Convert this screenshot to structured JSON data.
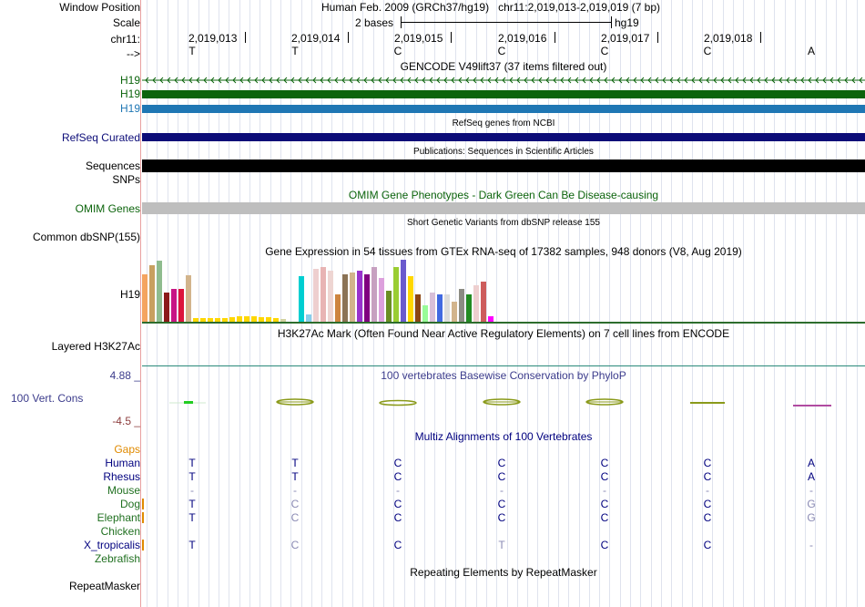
{
  "header": {
    "window_position_label": "Window Position",
    "scale_label": "Scale",
    "chrom_label": "chr11:",
    "strand_label": "-->",
    "assembly_text": "Human Feb. 2009 (GRCh37/hg19)   chr11:2,019,013-2,019,019 (7 bp)",
    "scale_text": "2 bases",
    "scale_db": "hg19"
  },
  "ruler": {
    "positions": [
      "2,019,013",
      "2,019,014",
      "2,019,015",
      "2,019,016",
      "2,019,017",
      "2,019,018"
    ],
    "bases": [
      "T",
      "T",
      "C",
      "C",
      "C",
      "C",
      "A"
    ]
  },
  "tracks": {
    "gencode": {
      "title": "GENCODE V49lift37 (37 items filtered out)",
      "rows": [
        "H19",
        "H19",
        "H19"
      ],
      "row_colors": [
        "#0c640c",
        "#0c640c",
        "#1f77b4"
      ]
    },
    "refseq": {
      "title": "RefSeq genes from NCBI",
      "label": "RefSeq Curated",
      "color": "#0c0c78"
    },
    "publications": {
      "title": "Publications: Sequences in Scientific Articles",
      "label": "Sequences"
    },
    "snps_label": "SNPs",
    "omim": {
      "title": "OMIM Gene Phenotypes - Dark Green Can Be Disease-causing",
      "label": "OMIM Genes"
    },
    "dbsnp": {
      "title": "Short Genetic Variants from dbSNP release 155",
      "label": "Common dbSNP(155)"
    },
    "gtex": {
      "title": "Gene Expression in 54 tissues from GTEx RNA-seq of 17382 samples, 948 donors (V8, Aug 2019)",
      "label": "H19"
    },
    "h3k27ac": {
      "title": "H3K27Ac Mark (Often Found Near Active Regulatory Elements) on 7 cell lines from ENCODE",
      "label": "Layered H3K27Ac"
    },
    "phylop": {
      "title": "100 vertebrates Basewise Conservation by PhyloP",
      "label": "100 Vert. Cons",
      "max": "4.88 _",
      "min": "-4.5 _"
    },
    "multiz": {
      "title": "Multiz Alignments of 100 Vertebrates",
      "gaps_label": "Gaps",
      "species": [
        {
          "name": "Human",
          "color": "#00007f",
          "bases": [
            "T",
            "T",
            "C",
            "C",
            "C",
            "C",
            "A"
          ]
        },
        {
          "name": "Rhesus",
          "color": "#00007f",
          "bases": [
            "T",
            "T",
            "C",
            "C",
            "C",
            "C",
            "A"
          ]
        },
        {
          "name": "Mouse",
          "color": "#207020",
          "bases": [
            "-",
            "-",
            "-",
            "-",
            "-",
            "-",
            "-"
          ]
        },
        {
          "name": "Dog",
          "color": "#207020",
          "bases": [
            "T",
            "C",
            "C",
            "C",
            "C",
            "C",
            "G"
          ]
        },
        {
          "name": "Elephant",
          "color": "#207020",
          "bases": [
            "T",
            "C",
            "C",
            "C",
            "C",
            "C",
            "G"
          ]
        },
        {
          "name": "Chicken",
          "color": "#207020",
          "bases": [
            "",
            "",
            "",
            "",
            "",
            "",
            ""
          ]
        },
        {
          "name": "X_tropicalis",
          "color": "#00007f",
          "bases": [
            "T",
            "C",
            "C",
            "T",
            "C",
            "C",
            "-"
          ]
        },
        {
          "name": "Zebrafish",
          "color": "#207020",
          "bases": [
            "",
            "",
            "",
            "",
            "",
            "",
            ""
          ]
        }
      ]
    },
    "repeatmasker": {
      "title": "Repeating Elements by RepeatMasker",
      "label": "RepeatMasker"
    }
  },
  "colors": {
    "gencode_green": "#0c640c",
    "gencode_blue": "#1f77b4",
    "refseq_navy": "#0c0c78",
    "omim_gray": "#bebebe",
    "phylop_text": "#3c3c8c",
    "gaps_orange": "#e08a00",
    "h3k27ac_line": "#2a8a7a"
  }
}
